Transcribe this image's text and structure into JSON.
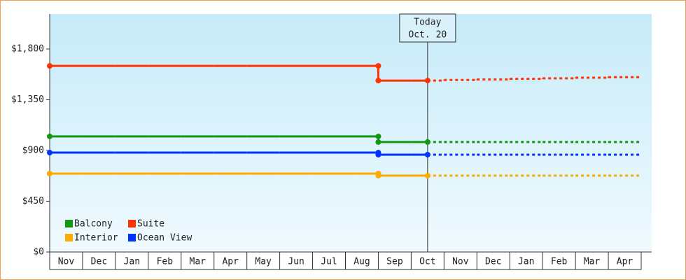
{
  "chart_data": {
    "type": "step-line",
    "categories": [
      "Nov",
      "Dec",
      "Jan",
      "Feb",
      "Mar",
      "Apr",
      "May",
      "Jun",
      "Jul",
      "Aug",
      "Sep",
      "Oct",
      "Nov",
      "Dec",
      "Jan",
      "Feb",
      "Mar",
      "Apr"
    ],
    "series": [
      {
        "name": "Balcony",
        "color": "#119911",
        "values": [
          1025,
          1025,
          1025,
          1025,
          1025,
          1025,
          1025,
          1025,
          1025,
          1025,
          975,
          975,
          null,
          null,
          null,
          null,
          null,
          null
        ],
        "forecast": [
          null,
          null,
          null,
          null,
          null,
          null,
          null,
          null,
          null,
          null,
          null,
          975,
          975,
          975,
          975,
          975,
          975,
          975
        ]
      },
      {
        "name": "Suite",
        "color": "#ff3300",
        "values": [
          1650,
          1650,
          1650,
          1650,
          1650,
          1650,
          1650,
          1650,
          1650,
          1650,
          1520,
          1520,
          null,
          null,
          null,
          null,
          null,
          null
        ],
        "forecast": [
          null,
          null,
          null,
          null,
          null,
          null,
          null,
          null,
          null,
          null,
          null,
          1520,
          1525,
          1530,
          1535,
          1540,
          1545,
          1550
        ]
      },
      {
        "name": "Interior",
        "color": "#ffaa00",
        "values": [
          695,
          695,
          695,
          695,
          695,
          695,
          695,
          695,
          695,
          695,
          677,
          677,
          null,
          null,
          null,
          null,
          null,
          null
        ],
        "forecast": [
          null,
          null,
          null,
          null,
          null,
          null,
          null,
          null,
          null,
          null,
          null,
          677,
          677,
          677,
          677,
          677,
          677,
          677
        ]
      },
      {
        "name": "Ocean View",
        "color": "#0033ff",
        "values": [
          881,
          881,
          881,
          881,
          881,
          881,
          881,
          881,
          881,
          881,
          863,
          863,
          null,
          null,
          null,
          null,
          null,
          null
        ],
        "forecast": [
          null,
          null,
          null,
          null,
          null,
          null,
          null,
          null,
          null,
          null,
          null,
          863,
          863,
          863,
          863,
          863,
          863,
          863
        ]
      }
    ],
    "today": [
      "Today",
      "Oct. 20"
    ],
    "ylim": [
      0,
      2110
    ],
    "yticks": [
      {
        "value": 0,
        "label": "$0"
      },
      {
        "value": 450,
        "label": "$450"
      },
      {
        "value": 900,
        "label": "$900"
      },
      {
        "value": 1350,
        "label": "$1,350"
      },
      {
        "value": 1800,
        "label": "$1,800"
      }
    ],
    "legend": "lower left"
  }
}
